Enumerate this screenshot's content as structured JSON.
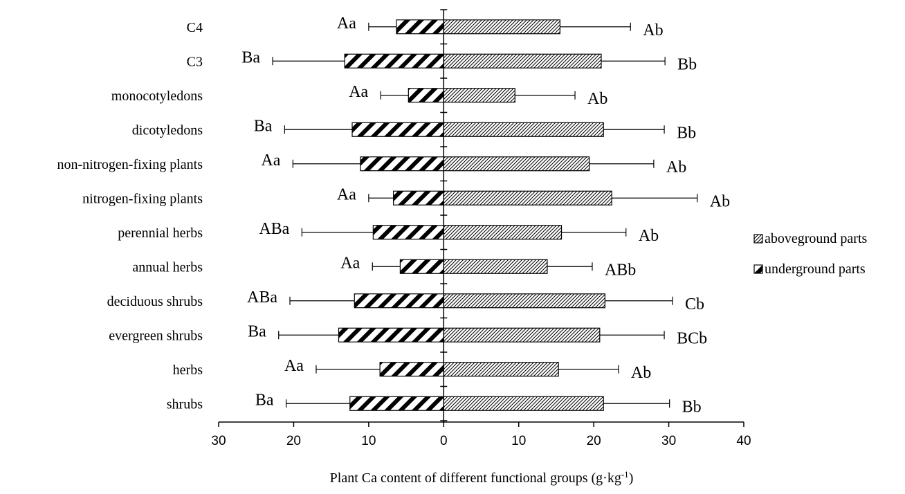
{
  "chart_data": {
    "type": "bar",
    "orientation": "horizontal",
    "title": "",
    "xlabel_prefix": "Plant Ca content of different functional groups (g·kg",
    "xlabel_sup": "-1",
    "xlabel_suffix": ")",
    "ylabel": "",
    "xlim": [
      -30,
      40
    ],
    "xticks": [
      -30,
      -20,
      -10,
      0,
      10,
      20,
      30,
      40
    ],
    "xtick_labels": [
      "30",
      "20",
      "10",
      "0",
      "10",
      "20",
      "30",
      "40"
    ],
    "categories": [
      "C4",
      "C3",
      "monocotyledons",
      "dicotyledons",
      "non-nitrogen-fixing plants",
      "nitrogen-fixing plants",
      "perennial herbs",
      "annual herbs",
      "deciduous shrubs",
      "evergreen shrubs",
      "herbs",
      "shrubs"
    ],
    "series": [
      {
        "name": "aboveground parts",
        "pattern": "fine-diagonal",
        "values": [
          15.5,
          21.0,
          9.5,
          21.3,
          19.4,
          22.4,
          15.7,
          13.8,
          21.5,
          20.8,
          15.3,
          21.3
        ],
        "errors": [
          9.4,
          8.5,
          8.0,
          8.1,
          8.6,
          11.4,
          8.6,
          6.0,
          9.0,
          8.6,
          8.0,
          8.8
        ],
        "sig_labels": [
          "Ab",
          "Bb",
          "Ab",
          "Bb",
          "Ab",
          "Ab",
          "Ab",
          "ABb",
          "Cb",
          "BCb",
          "Ab",
          "Bb"
        ]
      },
      {
        "name": "underground parts",
        "pattern": "coarse-diagonal",
        "values": [
          6.3,
          13.2,
          4.7,
          12.2,
          11.1,
          6.7,
          9.4,
          5.8,
          11.9,
          14.0,
          8.5,
          12.5
        ],
        "errors": [
          3.7,
          9.6,
          3.7,
          9.0,
          9.0,
          3.3,
          9.5,
          3.7,
          8.6,
          8.0,
          8.5,
          8.5
        ],
        "sig_labels": [
          "Aa",
          "Ba",
          "Aa",
          "Ba",
          "Aa",
          "Aa",
          "ABa",
          "Aa",
          "ABa",
          "Ba",
          "Aa",
          "Ba"
        ]
      }
    ],
    "legend_position": "right",
    "grid": false
  }
}
